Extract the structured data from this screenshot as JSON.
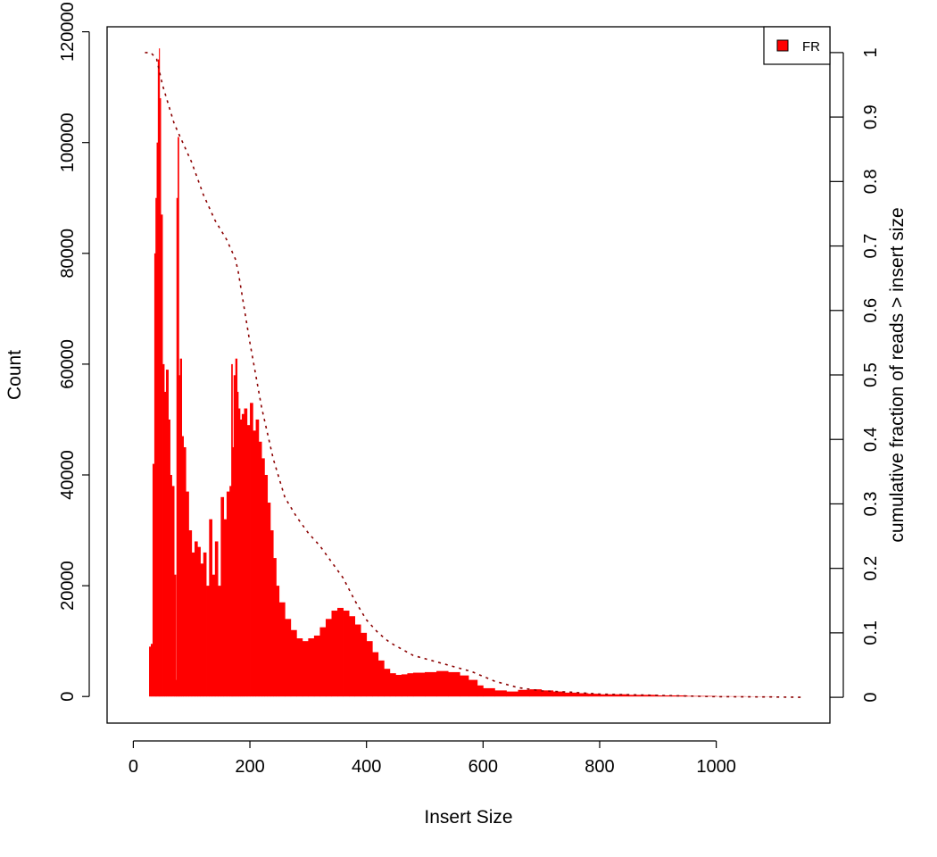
{
  "chart_data": {
    "type": "bar",
    "title": "",
    "xlabel": "Insert Size",
    "ylabel": "Count",
    "y2label": "cumulative fraction of reads > insert size",
    "xlim": [
      -45,
      1195
    ],
    "ylim": [
      -4800,
      120900
    ],
    "y2lim": [
      -0.04,
      1.04
    ],
    "xticks": [
      0,
      200,
      400,
      600,
      800,
      1000
    ],
    "yticks": [
      0,
      20000,
      40000,
      60000,
      80000,
      100000,
      120000
    ],
    "y2ticks": [
      0,
      0.1,
      0.2,
      0.3,
      0.4,
      0.5,
      0.6,
      0.7,
      0.8,
      0.9,
      1
    ],
    "legend": {
      "position": "top-right",
      "entries": [
        {
          "label": "FR",
          "color": "#ff0000"
        }
      ]
    },
    "grid": false,
    "series": [
      {
        "name": "FR",
        "type": "histogram",
        "color": "#ff0000",
        "x": [
          20,
          25,
          27,
          30,
          33,
          36,
          38,
          40,
          42,
          44,
          45,
          47,
          50,
          53,
          56,
          60,
          63,
          66,
          70,
          73,
          74,
          76,
          78,
          80,
          83,
          86,
          90,
          95,
          100,
          105,
          110,
          115,
          120,
          125,
          130,
          135,
          140,
          145,
          150,
          155,
          160,
          165,
          168,
          170,
          172,
          175,
          178,
          180,
          183,
          186,
          190,
          195,
          200,
          205,
          210,
          215,
          220,
          225,
          230,
          235,
          240,
          245,
          250,
          260,
          270,
          280,
          290,
          300,
          310,
          320,
          330,
          340,
          350,
          360,
          370,
          380,
          390,
          400,
          410,
          420,
          430,
          440,
          450,
          460,
          470,
          480,
          500,
          520,
          540,
          560,
          575,
          590,
          600,
          620,
          640,
          660,
          680,
          700,
          720,
          740,
          760,
          780,
          800,
          850,
          900,
          950,
          1000,
          1050,
          1100,
          1150
        ],
        "values": [
          0,
          0,
          9000,
          9500,
          42000,
          80000,
          90000,
          100000,
          115000,
          117000,
          108000,
          87000,
          60000,
          55000,
          59000,
          50000,
          40000,
          38000,
          22000,
          3000,
          90000,
          101000,
          58000,
          61000,
          47000,
          45000,
          37000,
          30000,
          26000,
          28000,
          27000,
          24000,
          26000,
          20000,
          32000,
          22000,
          28000,
          20000,
          36000,
          32000,
          37000,
          38000,
          60000,
          45000,
          58000,
          61000,
          55000,
          52000,
          50000,
          51000,
          52000,
          49000,
          53000,
          48000,
          50000,
          46000,
          43000,
          40000,
          35000,
          30000,
          25000,
          20000,
          17000,
          14000,
          12000,
          10500,
          10000,
          10500,
          11000,
          12500,
          14000,
          15500,
          16000,
          15500,
          14500,
          13000,
          11500,
          10000,
          8000,
          6500,
          5000,
          4200,
          3900,
          4000,
          4200,
          4300,
          4400,
          4600,
          4400,
          3800,
          3000,
          2000,
          1500,
          1100,
          900,
          1200,
          1300,
          1100,
          900,
          700,
          600,
          500,
          400,
          300,
          200,
          100,
          50,
          30,
          0,
          0
        ]
      },
      {
        "name": "",
        "type": "line",
        "axis": "right",
        "color": "#8b0000",
        "style": "dotted",
        "x": [
          20,
          30,
          40,
          50,
          60,
          70,
          80,
          90,
          100,
          120,
          140,
          160,
          175,
          180,
          200,
          220,
          240,
          260,
          280,
          300,
          320,
          340,
          360,
          380,
          400,
          420,
          440,
          460,
          480,
          500,
          540,
          580,
          620,
          660,
          700,
          750,
          800,
          900,
          1000,
          1100,
          1150
        ],
        "y": [
          1,
          1,
          0.99,
          0.95,
          0.92,
          0.89,
          0.87,
          0.85,
          0.83,
          0.78,
          0.74,
          0.71,
          0.68,
          0.66,
          0.55,
          0.45,
          0.37,
          0.31,
          0.28,
          0.255,
          0.235,
          0.21,
          0.185,
          0.15,
          0.12,
          0.1,
          0.085,
          0.075,
          0.065,
          0.06,
          0.05,
          0.04,
          0.025,
          0.015,
          0.01,
          0.008,
          0.005,
          0.003,
          0.001,
          0.0005,
          0
        ]
      }
    ]
  }
}
